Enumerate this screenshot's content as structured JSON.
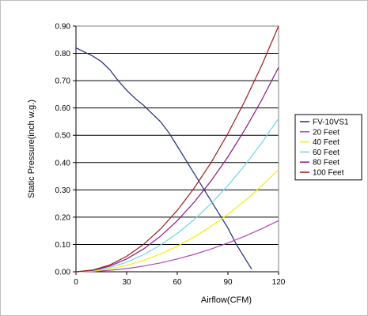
{
  "chart_data": {
    "type": "line",
    "title": "",
    "xlabel": "Airflow(CFM)",
    "ylabel": "Static Pressure(inch w.g.)",
    "xlim": [
      0,
      120
    ],
    "ylim": [
      0,
      0.9
    ],
    "x_ticks": [
      0,
      30,
      60,
      90,
      120
    ],
    "y_ticks": [
      0,
      0.1,
      0.2,
      0.3,
      0.4,
      0.5,
      0.6,
      0.7,
      0.8,
      0.9
    ],
    "x_tick_labels": [
      "0",
      "30",
      "60",
      "90",
      "120"
    ],
    "y_tick_labels": [
      "0.00",
      "0.10",
      "0.20",
      "0.30",
      "0.40",
      "0.50",
      "0.60",
      "0.70",
      "0.80",
      "0.90"
    ],
    "grid": "horizontal",
    "legend_position": "right",
    "series": [
      {
        "name": "FV-10VS1",
        "color": "#1f2a7a",
        "points": [
          [
            0,
            0.82
          ],
          [
            5,
            0.805
          ],
          [
            10,
            0.79
          ],
          [
            15,
            0.77
          ],
          [
            20,
            0.74
          ],
          [
            25,
            0.7
          ],
          [
            30,
            0.665
          ],
          [
            35,
            0.635
          ],
          [
            40,
            0.61
          ],
          [
            45,
            0.58
          ],
          [
            50,
            0.55
          ],
          [
            55,
            0.51
          ],
          [
            60,
            0.46
          ],
          [
            65,
            0.41
          ],
          [
            70,
            0.36
          ],
          [
            75,
            0.31
          ],
          [
            80,
            0.26
          ],
          [
            85,
            0.21
          ],
          [
            90,
            0.16
          ],
          [
            95,
            0.1
          ],
          [
            100,
            0.05
          ],
          [
            104,
            0.01
          ]
        ]
      },
      {
        "name": "20 Feet",
        "color": "#b542b5",
        "points": [
          [
            0,
            0
          ],
          [
            10,
            0.0013
          ],
          [
            20,
            0.0052
          ],
          [
            30,
            0.0117
          ],
          [
            40,
            0.0208
          ],
          [
            50,
            0.0325
          ],
          [
            60,
            0.0468
          ],
          [
            70,
            0.0637
          ],
          [
            80,
            0.0832
          ],
          [
            90,
            0.1053
          ],
          [
            100,
            0.13
          ],
          [
            110,
            0.1573
          ],
          [
            120,
            0.1872
          ]
        ]
      },
      {
        "name": "40 Feet",
        "color": "#f2f000",
        "points": [
          [
            0,
            0
          ],
          [
            10,
            0.0026
          ],
          [
            20,
            0.0104
          ],
          [
            30,
            0.0234
          ],
          [
            40,
            0.0416
          ],
          [
            50,
            0.065
          ],
          [
            60,
            0.0936
          ],
          [
            70,
            0.1274
          ],
          [
            80,
            0.1664
          ],
          [
            90,
            0.2106
          ],
          [
            100,
            0.26
          ],
          [
            110,
            0.3146
          ],
          [
            120,
            0.3744
          ]
        ]
      },
      {
        "name": "60 Feet",
        "color": "#6fd6e6",
        "points": [
          [
            0,
            0
          ],
          [
            10,
            0.0039
          ],
          [
            20,
            0.0156
          ],
          [
            30,
            0.0351
          ],
          [
            40,
            0.0624
          ],
          [
            50,
            0.0975
          ],
          [
            60,
            0.1404
          ],
          [
            70,
            0.1911
          ],
          [
            80,
            0.2496
          ],
          [
            90,
            0.3159
          ],
          [
            100,
            0.39
          ],
          [
            110,
            0.4719
          ],
          [
            120,
            0.5616
          ]
        ]
      },
      {
        "name": "80 Feet",
        "color": "#8a1a8a",
        "points": [
          [
            0,
            0
          ],
          [
            10,
            0.0052
          ],
          [
            20,
            0.0208
          ],
          [
            30,
            0.0468
          ],
          [
            40,
            0.0832
          ],
          [
            50,
            0.13
          ],
          [
            60,
            0.1872
          ],
          [
            70,
            0.2548
          ],
          [
            80,
            0.3328
          ],
          [
            90,
            0.4212
          ],
          [
            100,
            0.52
          ],
          [
            110,
            0.6292
          ],
          [
            120,
            0.7488
          ]
        ]
      },
      {
        "name": "100 Feet",
        "color": "#9a1a1a",
        "points": [
          [
            0,
            0
          ],
          [
            10,
            0.0063
          ],
          [
            20,
            0.025
          ],
          [
            30,
            0.0563
          ],
          [
            40,
            0.1
          ],
          [
            50,
            0.1563
          ],
          [
            60,
            0.225
          ],
          [
            70,
            0.3063
          ],
          [
            80,
            0.4
          ],
          [
            90,
            0.5063
          ],
          [
            100,
            0.625
          ],
          [
            110,
            0.7563
          ],
          [
            120,
            0.9
          ]
        ]
      }
    ]
  }
}
